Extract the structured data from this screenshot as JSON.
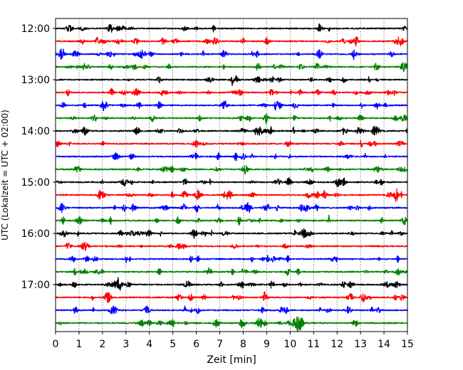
{
  "chart_data": {
    "type": "line",
    "title": "",
    "xlabel": "Zeit  [min]",
    "ylabel": "UTC (Lokalzeit = UTC + 02:00)",
    "xlim": [
      0,
      15
    ],
    "x_ticks": [
      "0",
      "1",
      "2",
      "3",
      "4",
      "5",
      "6",
      "7",
      "8",
      "9",
      "10",
      "11",
      "12",
      "13",
      "14",
      "15"
    ],
    "y_ticks": [
      "12:00",
      "13:00",
      "14:00",
      "15:00",
      "16:00",
      "17:00"
    ],
    "grid": "vertical-dotted",
    "trace_colors": [
      "#000000",
      "#ff0000",
      "#0000ff",
      "#008000"
    ],
    "traces_start": "12:00",
    "trace_interval_min": 15,
    "trace_count": 24
  }
}
